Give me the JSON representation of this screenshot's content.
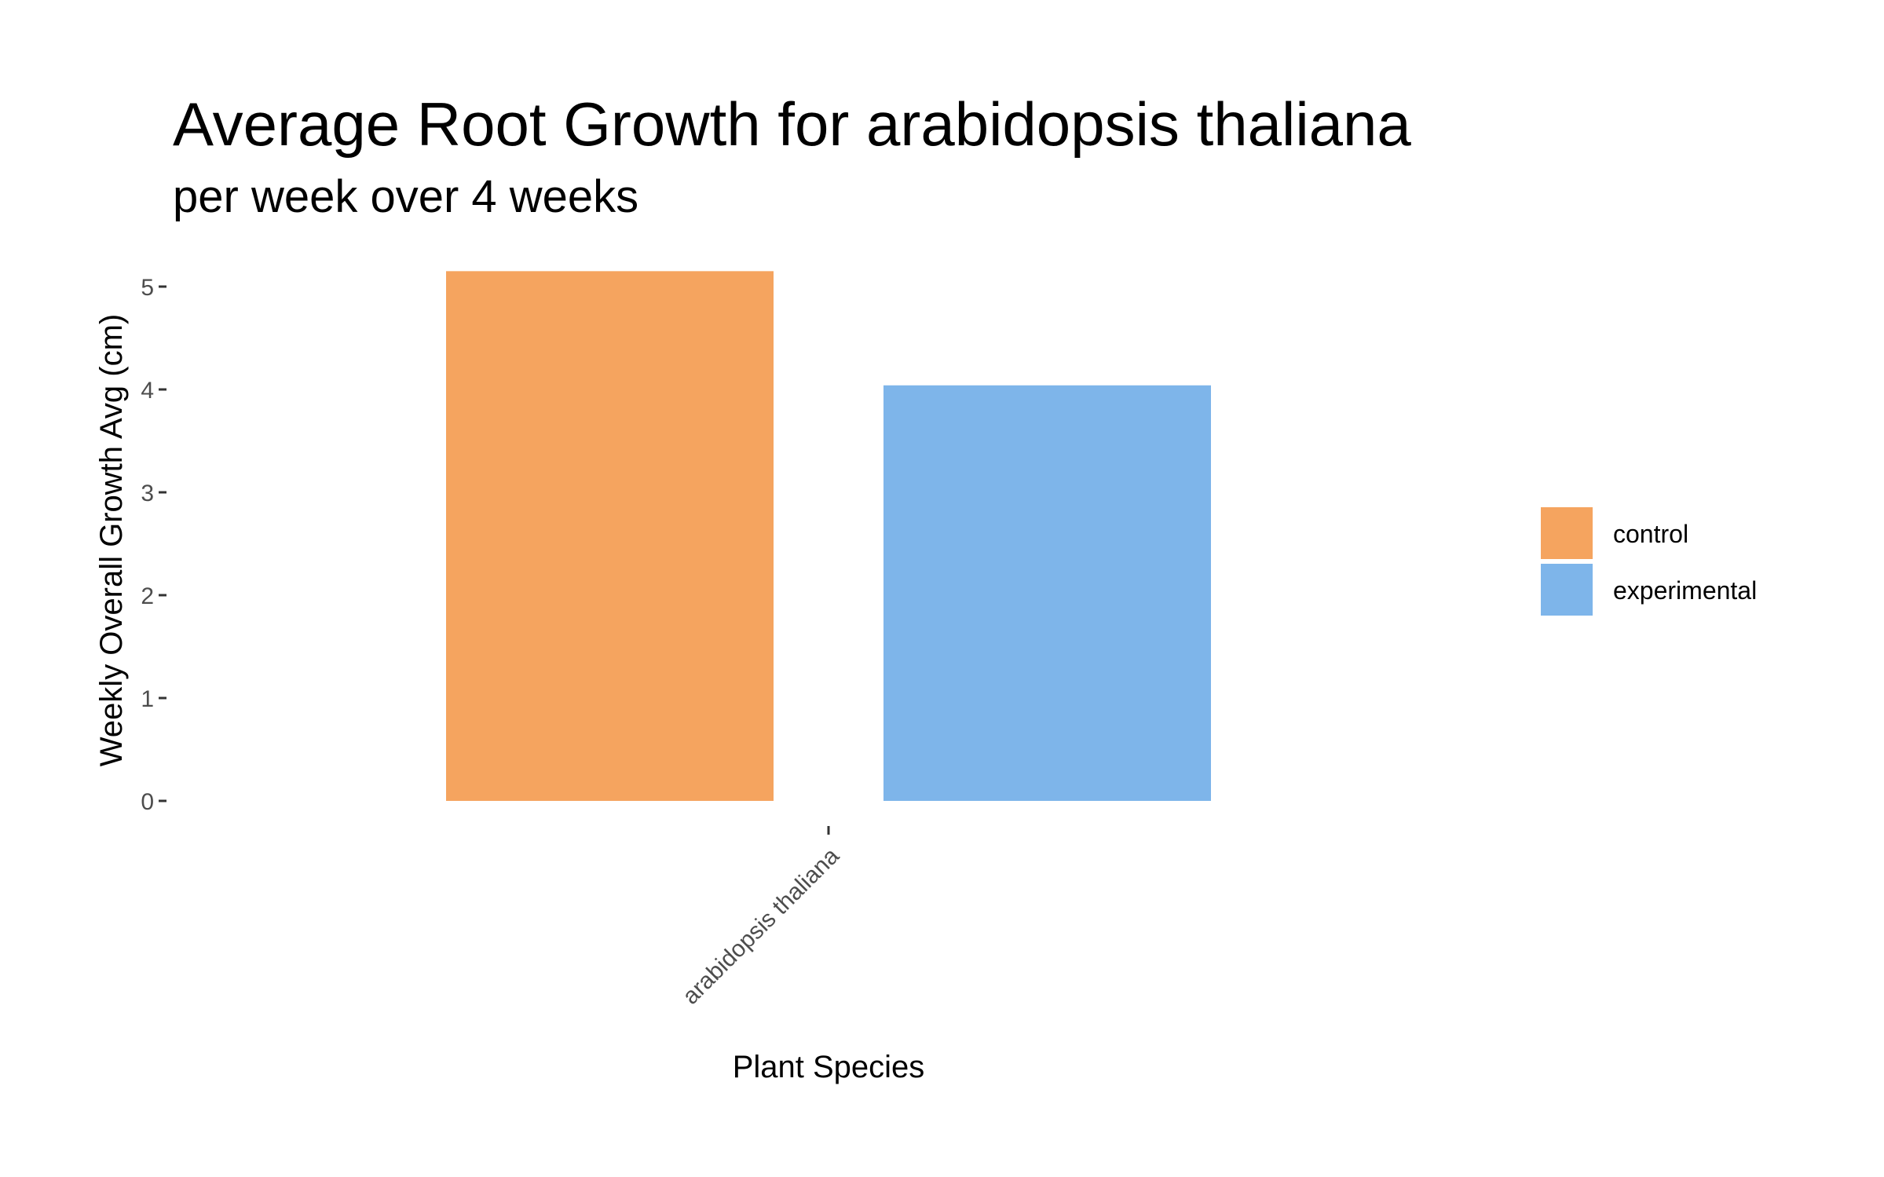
{
  "chart_data": {
    "type": "bar",
    "title": "Average Root Growth for arabidopsis thaliana",
    "subtitle": "per week over 4 weeks",
    "xlabel": "Plant Species",
    "ylabel": "Weekly Overall Growth Avg (cm)",
    "categories": [
      "arabidopsis thaliana"
    ],
    "series": [
      {
        "name": "control",
        "values": [
          5.15
        ],
        "color": "#F5A45F"
      },
      {
        "name": "experimental",
        "values": [
          4.04
        ],
        "color": "#7EB5EA"
      }
    ],
    "yticks": [
      "0",
      "1",
      "2",
      "3",
      "4",
      "5"
    ],
    "ylim": [
      0,
      5.2
    ],
    "grid": false,
    "legend_position": "right"
  }
}
